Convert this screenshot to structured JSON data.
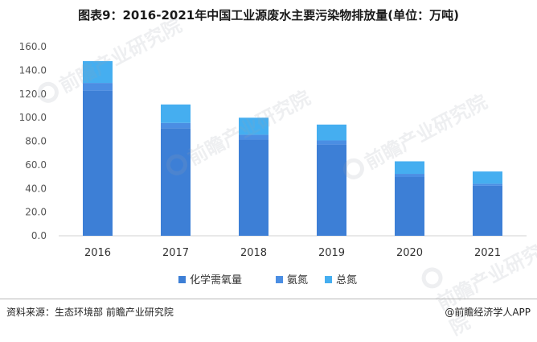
{
  "title": "图表9：2016-2021年中国工业源废水主要污染物排放量(单位：万吨)",
  "source": "资料来源：生态环境部 前瞻产业研究院",
  "credit": "@前瞻经济学人APP",
  "watermark": {
    "text": "前瞻产业研究院",
    "icon": "qianzhan-logo-icon"
  },
  "chart_data": {
    "type": "bar",
    "stacked": true,
    "categories": [
      "2016",
      "2017",
      "2018",
      "2019",
      "2020",
      "2021"
    ],
    "series": [
      {
        "name": "化学需氧量",
        "color": "#3d7fd6",
        "values": [
          122.8,
          91.0,
          81.4,
          77.2,
          49.7,
          42.3
        ]
      },
      {
        "name": "氨氮",
        "color": "#4b8ee3",
        "values": [
          6.5,
          4.5,
          4.1,
          3.5,
          2.7,
          1.7
        ]
      },
      {
        "name": "总氮",
        "color": "#45aef0",
        "values": [
          18.5,
          15.6,
          14.4,
          13.4,
          10.6,
          10.4
        ]
      }
    ],
    "yticks": [
      "0.0",
      "20.0",
      "40.0",
      "60.0",
      "80.0",
      "100.0",
      "120.0",
      "140.0",
      "160.0"
    ],
    "ylim": [
      0,
      160
    ],
    "legend": "bottom",
    "grid": false
  }
}
